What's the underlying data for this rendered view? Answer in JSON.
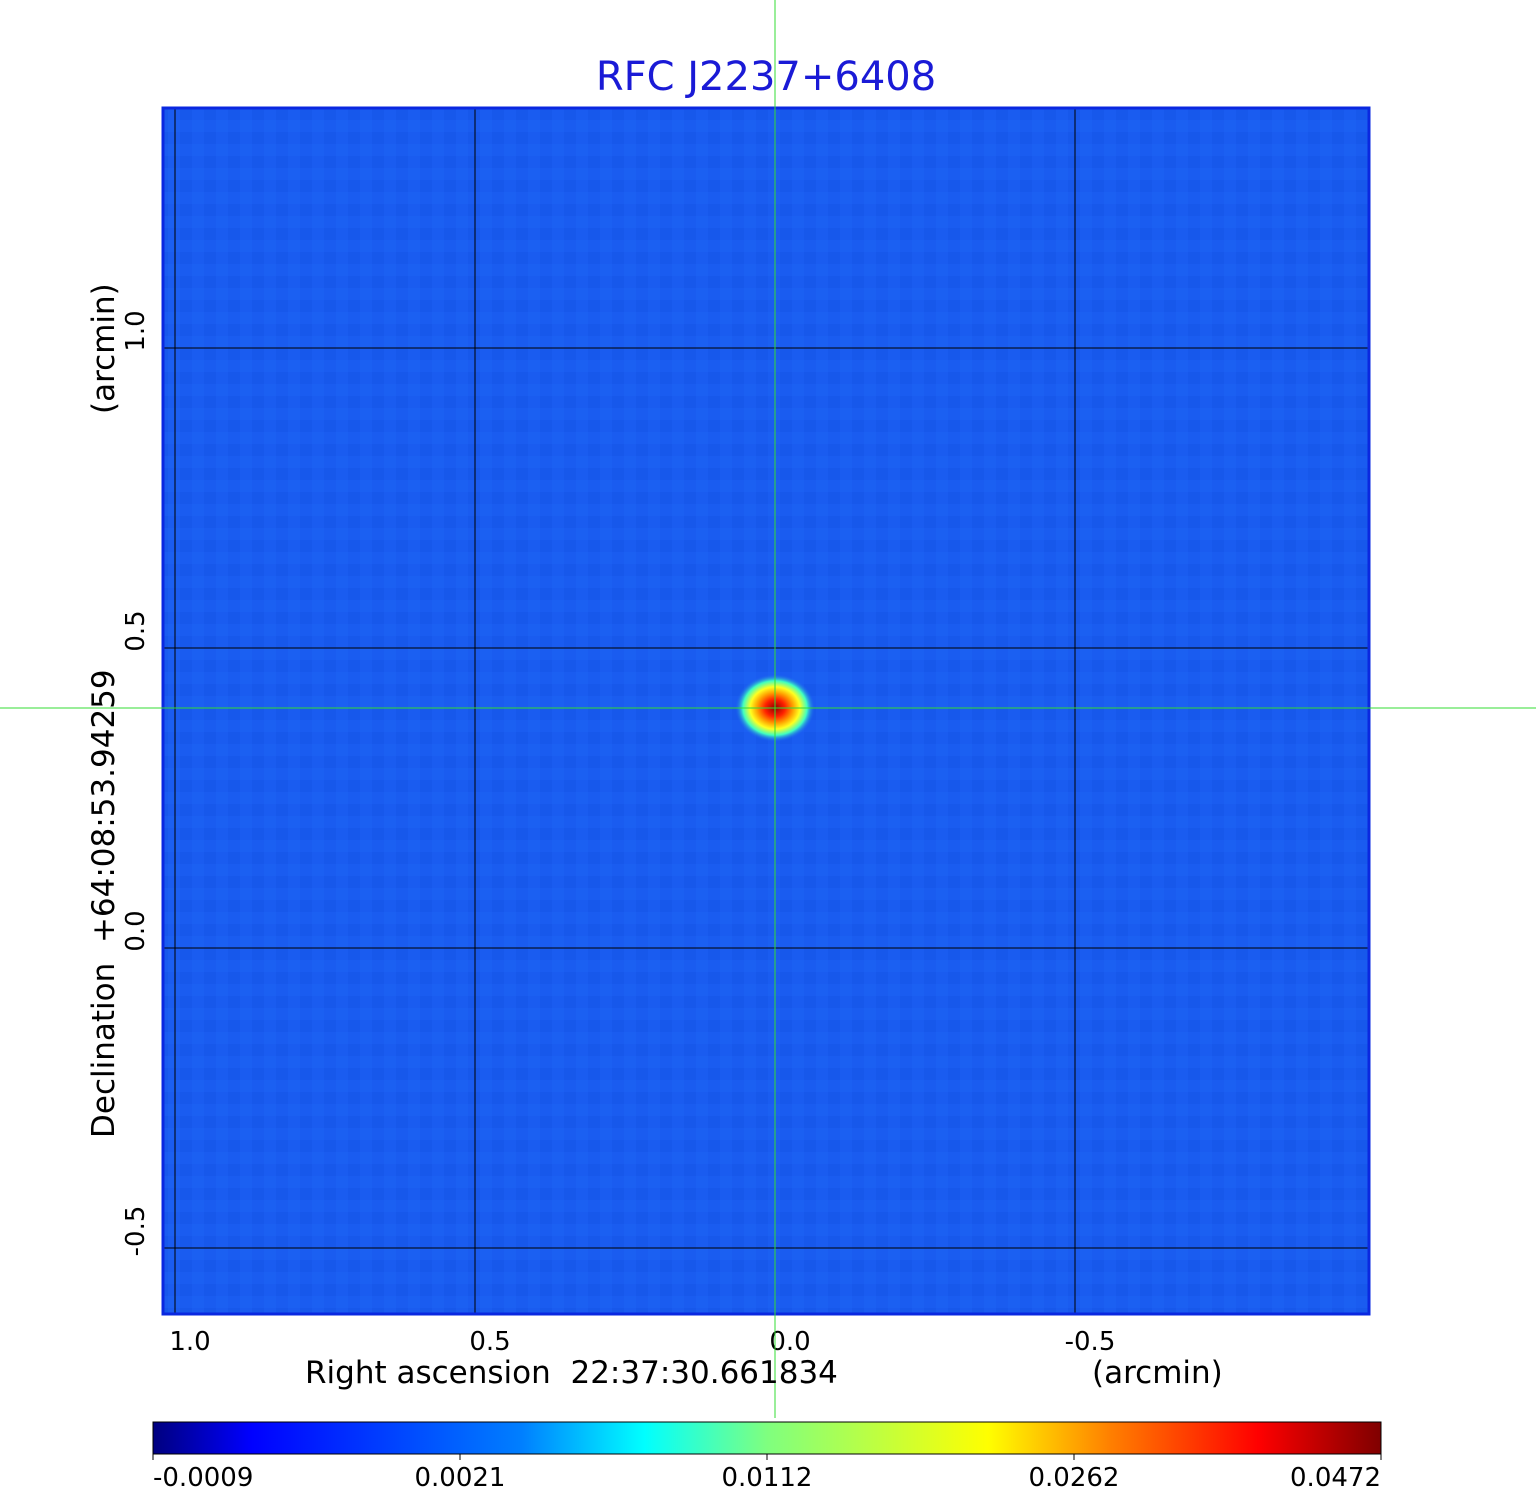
{
  "chart_data": {
    "type": "heatmap",
    "title": "RFC J2237+6408",
    "xlabel": "Right ascension  22:37:30.661834",
    "xunit": "(arcmin)",
    "ylabel": "Declination  +64:08:53.94259",
    "yunit": "(arcmin)",
    "xlim": [
      1.02,
      -0.99
    ],
    "ylim": [
      -0.61,
      1.4
    ],
    "x_ticks": [
      {
        "value": 1.0,
        "label": "1.0"
      },
      {
        "value": 0.5,
        "label": "0.5"
      },
      {
        "value": 0.0,
        "label": "0.0"
      },
      {
        "value": -0.5,
        "label": "-0.5"
      }
    ],
    "y_ticks": [
      {
        "value": 1.0,
        "label": "1.0"
      },
      {
        "value": 0.5,
        "label": "0.5"
      },
      {
        "value": 0.0,
        "label": "0.0"
      },
      {
        "value": -0.5,
        "label": "-0.5"
      }
    ],
    "grid": true,
    "crosshair": {
      "x": 0.0,
      "y": 0.4,
      "color": "#33dd33"
    },
    "source_peak": {
      "x": 0.0,
      "y": 0.4,
      "value": 0.0472
    },
    "colormap": "jet",
    "colorbar": {
      "labels": [
        "-0.0009",
        "0.0021",
        "0.0112",
        "0.0262",
        "0.0472"
      ],
      "stops": [
        "#00007f",
        "#0000ff",
        "#007fff",
        "#00ffff",
        "#7fff7f",
        "#ffff00",
        "#ff7f00",
        "#ff0000",
        "#7f0000"
      ]
    },
    "colors": {
      "background_map": "#1a5cf0",
      "title": "#1a1ad6",
      "frame": "#0a28e0",
      "grid": "#000000"
    }
  }
}
